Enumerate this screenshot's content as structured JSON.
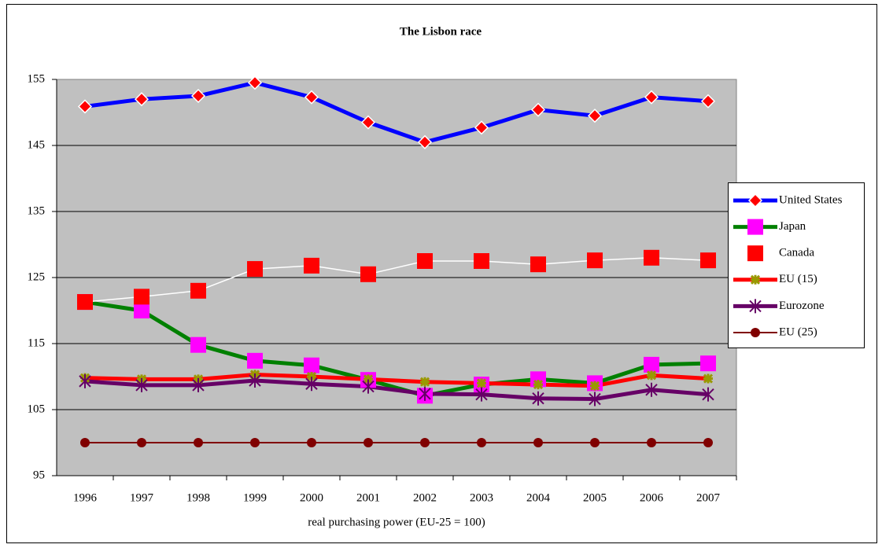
{
  "chart_data": {
    "type": "line",
    "title": "The Lisbon race",
    "x_label": "real purchasing power (EU-25 = 100)",
    "categories": [
      "1996",
      "1997",
      "1998",
      "1999",
      "2000",
      "2001",
      "2002",
      "2003",
      "2004",
      "2005",
      "2006",
      "2007"
    ],
    "ylim": [
      95,
      155
    ],
    "yticks": [
      95,
      105,
      115,
      125,
      135,
      145,
      155
    ],
    "grid": true,
    "legend": "right",
    "series": [
      {
        "name": "United States",
        "color": "#0000ff",
        "marker": "diamond",
        "marker_color": "#ff0000",
        "values": [
          150.9,
          152.0,
          152.5,
          154.5,
          152.3,
          148.5,
          145.5,
          147.7,
          150.4,
          149.5,
          152.3,
          151.7
        ]
      },
      {
        "name": "Japan",
        "color": "#008000",
        "marker": "square",
        "marker_color": "#ff00ff",
        "values": [
          121.3,
          120.0,
          114.8,
          112.4,
          111.7,
          109.5,
          107.1,
          108.8,
          109.6,
          109.0,
          111.8,
          112.0
        ]
      },
      {
        "name": "Canada",
        "color": "#ffffff",
        "marker": "square",
        "marker_color": "#ff0000",
        "values": [
          121.3,
          122.1,
          123.0,
          126.3,
          126.8,
          125.5,
          127.5,
          127.5,
          127.0,
          127.6,
          128.0,
          127.6
        ]
      },
      {
        "name": "EU (15)",
        "color": "#ff0000",
        "marker": "star",
        "marker_color": "#999900",
        "values": [
          109.8,
          109.6,
          109.6,
          110.3,
          110.0,
          109.6,
          109.2,
          109.0,
          108.8,
          108.6,
          110.2,
          109.7
        ]
      },
      {
        "name": "Eurozone",
        "color": "#660066",
        "marker": "asterisk",
        "marker_color": "#660066",
        "values": [
          109.3,
          108.7,
          108.7,
          109.4,
          108.9,
          108.5,
          107.4,
          107.3,
          106.7,
          106.6,
          108.0,
          107.3
        ]
      },
      {
        "name": "EU (25)",
        "color": "#800000",
        "marker": "circle",
        "marker_color": "#800000",
        "values": [
          100,
          100,
          100,
          100,
          100,
          100,
          100,
          100,
          100,
          100,
          100,
          100
        ]
      }
    ]
  }
}
